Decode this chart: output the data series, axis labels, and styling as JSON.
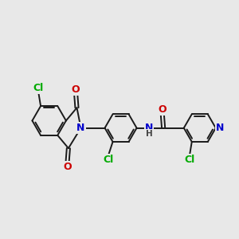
{
  "bg_color": "#e8e8e8",
  "bond_color": "#1a1a1a",
  "bond_width": 1.4,
  "atom_colors": {
    "C": "#1a1a1a",
    "N": "#0000cc",
    "O": "#cc0000",
    "Cl": "#00aa00",
    "H": "#444444"
  }
}
